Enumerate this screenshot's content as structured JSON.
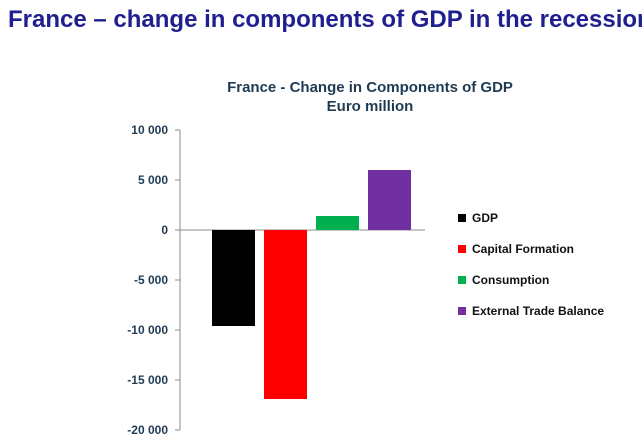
{
  "slide": {
    "title": "France – change in components of GDP in the recession"
  },
  "chart_data": {
    "type": "bar",
    "title": "France - Change in Components of GDP",
    "subtitle": "Euro million",
    "categories": [
      "GDP",
      "Capital Formation",
      "Consumption",
      "External Trade Balance"
    ],
    "values": [
      -9600,
      -16900,
      1400,
      6000
    ],
    "colors": [
      "#000000",
      "#ff0000",
      "#00b050",
      "#7030a0"
    ],
    "ylim": [
      -20000,
      10000
    ],
    "yticks": [
      10000,
      5000,
      0,
      -5000,
      -10000,
      -15000,
      -20000
    ],
    "ytick_labels": [
      "10 000",
      "5 000",
      "0",
      "-5 000",
      "-10 000",
      "-15 000",
      "-20 000"
    ],
    "grid": false,
    "legend_position": "right"
  }
}
